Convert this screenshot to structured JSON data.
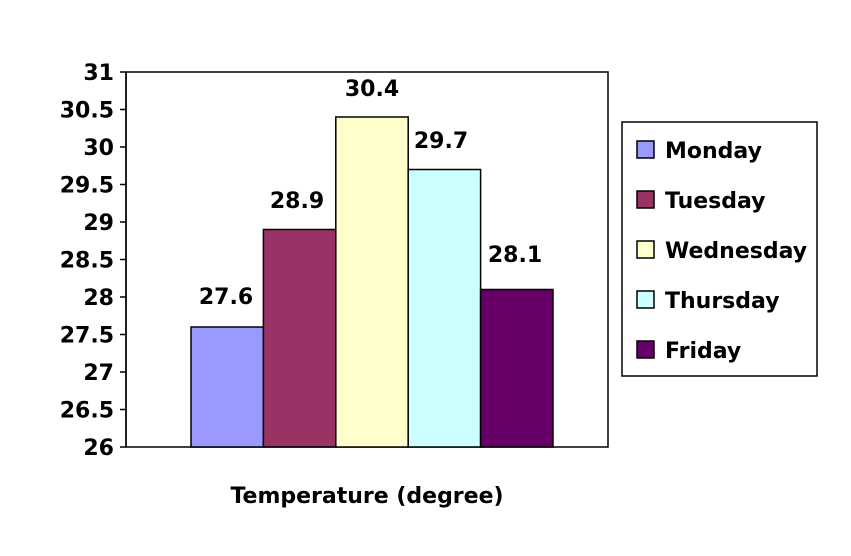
{
  "chart_data": {
    "type": "bar",
    "categories": [
      "Monday",
      "Tuesday",
      "Wednesday",
      "Thursday",
      "Friday"
    ],
    "values": [
      27.6,
      28.9,
      30.4,
      29.7,
      28.1
    ],
    "data_labels": [
      "27.6",
      "28.9",
      "30.4",
      "29.7",
      "28.1"
    ],
    "colors": [
      "#9999ff",
      "#993366",
      "#ffffcc",
      "#ccffff",
      "#660066"
    ],
    "xlabel": "Temperature (degree)",
    "ylabel": "",
    "ylim": [
      26,
      31
    ],
    "yticks": [
      26,
      26.5,
      27,
      27.5,
      28,
      28.5,
      29,
      29.5,
      30,
      30.5,
      31
    ],
    "ytick_labels": [
      "26",
      "26.5",
      "27",
      "27.5",
      "28",
      "28.5",
      "29",
      "29.5",
      "30",
      "30.5",
      "31"
    ],
    "grid": false,
    "legend": {
      "placement": "right",
      "entries": [
        "Monday",
        "Tuesday",
        "Wednesday",
        "Thursday",
        "Friday"
      ]
    }
  }
}
